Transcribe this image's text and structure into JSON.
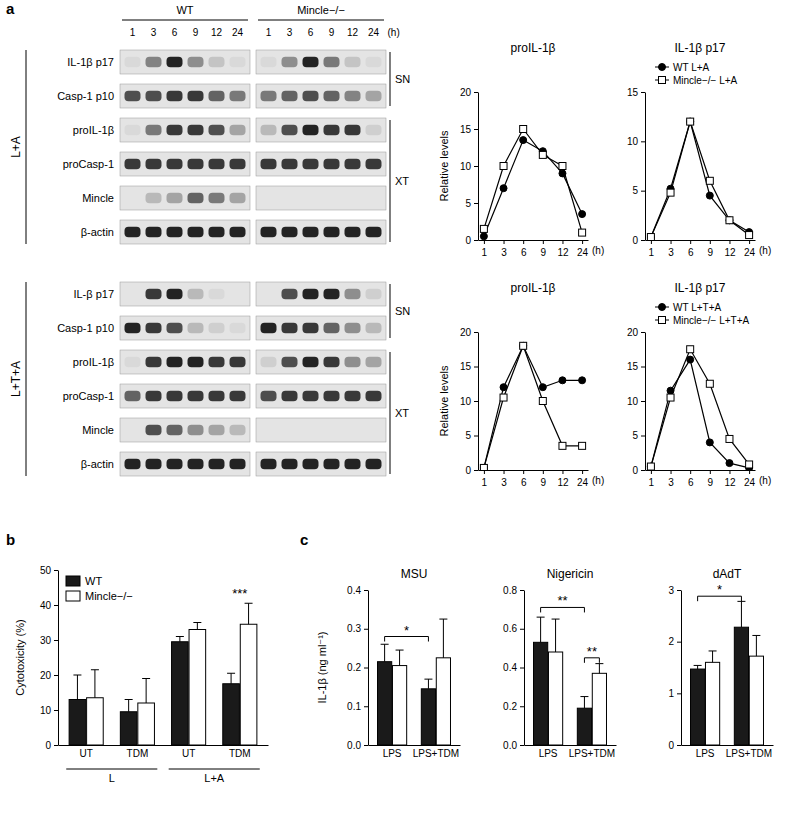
{
  "chart_data": [
    {
      "type": "blot",
      "panel": "a",
      "groups": [
        "WT",
        "Mincle−/−"
      ],
      "categories": [
        "1",
        "3",
        "6",
        "9",
        "12",
        "24",
        "1",
        "3",
        "6",
        "9",
        "12",
        "24"
      ],
      "x_label": "(h)",
      "condition": "L+A",
      "intensity_range": [
        0,
        1
      ],
      "rows": [
        {
          "name": "IL-1β p17",
          "values": [
            0.05,
            0.45,
            0.9,
            0.4,
            0.15,
            0.05,
            0.05,
            0.4,
            0.9,
            0.5,
            0.15,
            0.05
          ]
        },
        {
          "name": "Casp-1 p10",
          "values": [
            0.7,
            0.7,
            0.8,
            0.8,
            0.6,
            0.5,
            0.5,
            0.6,
            0.7,
            0.6,
            0.45,
            0.3
          ]
        },
        {
          "name": "proIL-1β",
          "values": [
            0.05,
            0.5,
            0.8,
            0.8,
            0.7,
            0.3,
            0.2,
            0.7,
            0.9,
            0.8,
            0.8,
            0.1
          ]
        },
        {
          "name": "proCasp-1",
          "values": [
            0.8,
            0.8,
            0.8,
            0.8,
            0.8,
            0.8,
            0.8,
            0.8,
            0.8,
            0.8,
            0.8,
            0.8
          ]
        },
        {
          "name": "Mincle",
          "values": [
            0,
            0.2,
            0.3,
            0.6,
            0.5,
            0.3,
            0,
            0,
            0,
            0,
            0,
            0
          ]
        },
        {
          "name": "β-actin",
          "values": [
            0.9,
            0.9,
            0.9,
            0.9,
            0.9,
            0.9,
            0.9,
            0.9,
            0.9,
            0.9,
            0.9,
            0.9
          ]
        }
      ],
      "fractions": [
        {
          "label": "SN",
          "rows": [
            0,
            1
          ]
        },
        {
          "label": "XT",
          "rows": [
            2,
            5
          ]
        }
      ]
    },
    {
      "type": "blot",
      "condition": "L+T+A",
      "intensity_range": [
        0,
        1
      ],
      "rows": [
        {
          "name": "IL-β p17",
          "values": [
            0,
            0.8,
            0.9,
            0.2,
            0.05,
            0,
            0,
            0.7,
            0.9,
            0.9,
            0.4,
            0.1
          ]
        },
        {
          "name": "Casp-1 p10",
          "values": [
            0.9,
            0.8,
            0.7,
            0.2,
            0.1,
            0.05,
            0.9,
            0.8,
            0.8,
            0.6,
            0.4,
            0.2
          ]
        },
        {
          "name": "proIL-1β",
          "values": [
            0.05,
            0.8,
            0.9,
            0.9,
            0.8,
            0.8,
            0.1,
            0.7,
            0.9,
            0.8,
            0.4,
            0.3
          ]
        },
        {
          "name": "proCasp-1",
          "values": [
            0.6,
            0.8,
            0.8,
            0.8,
            0.8,
            0.8,
            0.7,
            0.8,
            0.8,
            0.8,
            0.8,
            0.8
          ]
        },
        {
          "name": "Mincle",
          "values": [
            0,
            0.7,
            0.6,
            0.4,
            0.3,
            0.2,
            0,
            0,
            0,
            0,
            0,
            0
          ]
        },
        {
          "name": "β-actin",
          "values": [
            0.9,
            0.9,
            0.9,
            0.9,
            0.9,
            0.9,
            0.9,
            0.9,
            0.9,
            0.9,
            0.9,
            0.9
          ]
        }
      ],
      "fractions": [
        {
          "label": "SN",
          "rows": [
            0,
            1
          ]
        },
        {
          "label": "XT",
          "rows": [
            2,
            5
          ]
        }
      ]
    },
    {
      "type": "line",
      "title": "proIL-1β",
      "y_label": "Relative levels",
      "x_label": "(h)",
      "categories": [
        "1",
        "3",
        "6",
        "9",
        "12",
        "24"
      ],
      "series": [
        {
          "name": "WT L+A",
          "color": "#000000",
          "marker": "circle",
          "values": [
            0.5,
            7,
            13.5,
            12,
            9,
            3.5
          ]
        },
        {
          "name": "Mincle−/− L+A",
          "color": "#000000",
          "marker": "open-square",
          "values": [
            1.5,
            10,
            15,
            11.5,
            10,
            1
          ]
        }
      ],
      "ylim": [
        0,
        20
      ],
      "yticks": [
        0,
        5,
        10,
        15,
        20
      ]
    },
    {
      "type": "line",
      "title": "IL-1β p17",
      "x_label": "(h)",
      "legend": "upper right",
      "categories": [
        "1",
        "3",
        "6",
        "9",
        "12",
        "24"
      ],
      "series": [
        {
          "name": "WT L+A",
          "color": "#000000",
          "marker": "circle",
          "values": [
            0.3,
            5.2,
            12,
            4.5,
            2,
            0.8
          ]
        },
        {
          "name": "Mincle−/− L+A",
          "color": "#000000",
          "marker": "open-square",
          "values": [
            0.3,
            4.8,
            12,
            6,
            2,
            0.5
          ]
        }
      ],
      "ylim": [
        0,
        15
      ],
      "yticks": [
        0,
        5,
        10,
        15
      ]
    },
    {
      "type": "line",
      "title": "proIL-1β",
      "y_label": "Relative levels",
      "x_label": "(h)",
      "categories": [
        "1",
        "3",
        "6",
        "9",
        "12",
        "24"
      ],
      "series": [
        {
          "name": "WT L+T+A",
          "color": "#000000",
          "marker": "circle",
          "values": [
            0.3,
            12,
            18,
            12,
            13,
            13
          ]
        },
        {
          "name": "Mincle−/− L+T+A",
          "color": "#000000",
          "marker": "open-square",
          "values": [
            0.3,
            10.5,
            18,
            10,
            3.5,
            3.5
          ]
        }
      ],
      "ylim": [
        0,
        20
      ],
      "yticks": [
        0,
        5,
        10,
        15,
        20
      ]
    },
    {
      "type": "line",
      "title": "IL-1β p17",
      "x_label": "(h)",
      "legend": "upper right",
      "categories": [
        "1",
        "3",
        "6",
        "9",
        "12",
        "24"
      ],
      "series": [
        {
          "name": "WT L+T+A",
          "color": "#000000",
          "marker": "circle",
          "values": [
            0.5,
            11.5,
            16,
            4,
            1,
            0.3
          ]
        },
        {
          "name": "Mincle−/− L+T+A",
          "color": "#000000",
          "marker": "open-square",
          "values": [
            0.5,
            10.5,
            17.5,
            12.5,
            4.5,
            0.8
          ]
        }
      ],
      "ylim": [
        0,
        20
      ],
      "yticks": [
        0,
        5,
        10,
        15,
        20
      ]
    },
    {
      "type": "bar",
      "panel": "b",
      "y_label": "Cytotoxicity (%)",
      "legend": "upper left",
      "categories": [
        "UT",
        "TDM",
        "UT",
        "TDM"
      ],
      "groups": [
        {
          "label": "L",
          "from": 0,
          "to": 1
        },
        {
          "label": "L+A",
          "from": 2,
          "to": 3
        }
      ],
      "series": [
        {
          "name": "WT",
          "color": "#1a1a1a",
          "values": [
            13,
            9.5,
            29.5,
            17.5
          ],
          "errors": [
            7,
            3.5,
            1.5,
            3
          ]
        },
        {
          "name": "Mincle−/−",
          "color": "#ffffff",
          "values": [
            13.5,
            12,
            33,
            34.5
          ],
          "errors": [
            8,
            7,
            2,
            6
          ]
        }
      ],
      "annotations": [
        {
          "text": "***",
          "category": 3,
          "y": 42
        }
      ],
      "ylim": [
        0,
        50
      ],
      "yticks": [
        0,
        10,
        20,
        30,
        40,
        50
      ]
    },
    {
      "type": "bar",
      "panel": "c",
      "title": "MSU",
      "y_label": "IL-1β (ng ml⁻¹)",
      "categories": [
        "LPS",
        "LPS+TDM"
      ],
      "series": [
        {
          "name": "WT",
          "color": "#1a1a1a",
          "values": [
            0.215,
            0.145
          ],
          "errors": [
            0.045,
            0.025
          ]
        },
        {
          "name": "Mincle−/−",
          "color": "#ffffff",
          "values": [
            0.205,
            0.225
          ],
          "errors": [
            0.04,
            0.1
          ]
        }
      ],
      "annotations": [
        {
          "text": "*",
          "from": [
            0,
            0
          ],
          "to": [
            1,
            0
          ],
          "y": 0.28
        }
      ],
      "ylim": [
        0,
        0.4
      ],
      "yticks": [
        {
          "value": 0,
          "label": "0.0"
        },
        0.1,
        0.2,
        0.3,
        0.4
      ]
    },
    {
      "type": "bar",
      "title": "Nigericin",
      "categories": [
        "LPS",
        "LPS+TDM"
      ],
      "series": [
        {
          "name": "WT",
          "color": "#1a1a1a",
          "values": [
            0.53,
            0.19
          ],
          "errors": [
            0.13,
            0.06
          ]
        },
        {
          "name": "Mincle−/−",
          "color": "#ffffff",
          "values": [
            0.48,
            0.37
          ],
          "errors": [
            0.17,
            0.05
          ]
        }
      ],
      "annotations": [
        {
          "text": "**",
          "from": [
            0,
            0
          ],
          "to": [
            1,
            0
          ],
          "y": 0.71
        },
        {
          "text": "**",
          "from": [
            1,
            0
          ],
          "to": [
            1,
            1
          ],
          "y": 0.45
        }
      ],
      "ylim": [
        0,
        0.8
      ],
      "yticks": [
        {
          "value": 0,
          "label": "0.0"
        },
        0.2,
        0.4,
        0.6,
        0.8
      ]
    },
    {
      "type": "bar",
      "title": "dAdT",
      "categories": [
        "LPS",
        "LPS+TDM"
      ],
      "series": [
        {
          "name": "WT",
          "color": "#1a1a1a",
          "values": [
            1.47,
            2.28
          ],
          "errors": [
            0.07,
            0.5
          ]
        },
        {
          "name": "Mincle−/−",
          "color": "#ffffff",
          "values": [
            1.6,
            1.72
          ],
          "errors": [
            0.22,
            0.4
          ]
        }
      ],
      "annotations": [
        {
          "text": "*",
          "from": [
            0,
            0
          ],
          "to": [
            1,
            0
          ],
          "y": 2.88
        }
      ],
      "ylim": [
        0,
        3
      ],
      "yticks": [
        0,
        1,
        2,
        3
      ]
    }
  ]
}
